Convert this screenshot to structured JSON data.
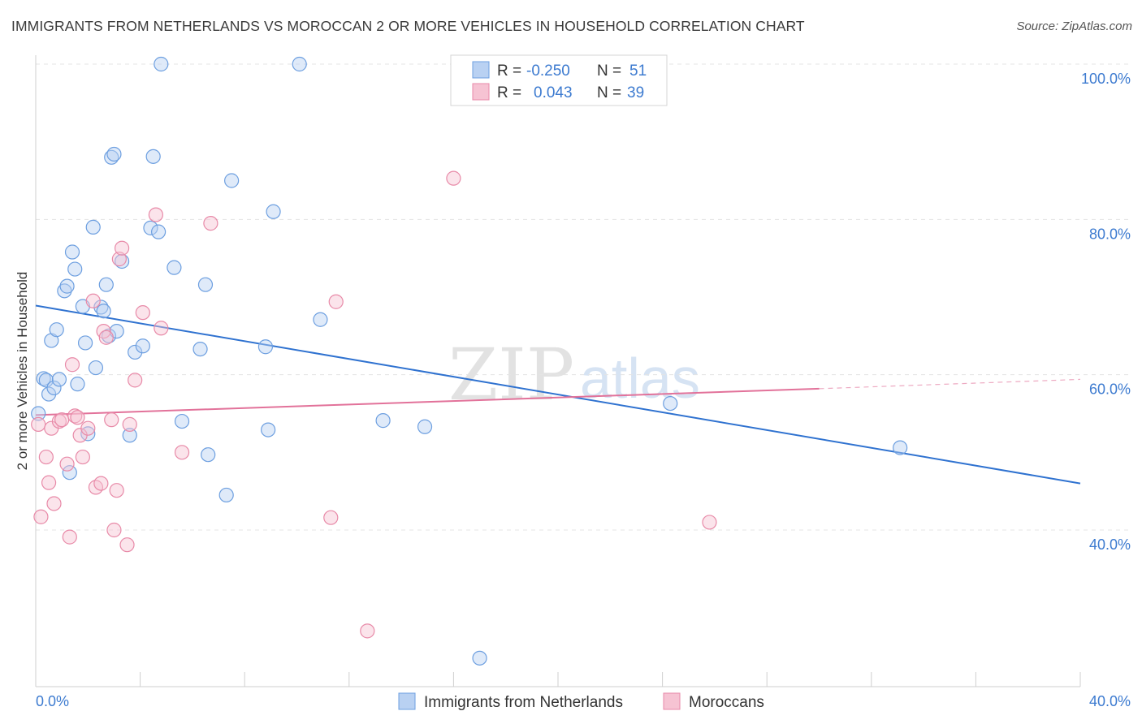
{
  "title": "IMMIGRANTS FROM NETHERLANDS VS MOROCCAN 2 OR MORE VEHICLES IN HOUSEHOLD CORRELATION CHART",
  "source": "Source: ZipAtlas.com",
  "colors": {
    "blue": "#6d9fe0",
    "blue_fill": "#b9d1f2",
    "pink": "#e88aa8",
    "pink_fill": "#f6c3d3",
    "blue_line": "#2f72d0",
    "pink_line": "#e2729a",
    "tick": "#3d7bd0"
  },
  "watermark": {
    "zip": "ZIP",
    "atlas": "atlas"
  },
  "legend": {
    "rows": [
      {
        "r_label": "R =",
        "r_value": "-0.250",
        "n_label": "N =",
        "n_value": "51"
      },
      {
        "r_label": "R =",
        "r_value": "0.043",
        "n_label": "N =",
        "n_value": "39"
      }
    ]
  },
  "chart_data": {
    "type": "scatter",
    "title": "IMMIGRANTS FROM NETHERLANDS VS MOROCCAN 2 OR MORE VEHICLES IN HOUSEHOLD CORRELATION CHART",
    "xlabel": "",
    "ylabel": "2 or more Vehicles in Household",
    "xlim": [
      0,
      40
    ],
    "ylim": [
      20,
      102
    ],
    "x_tick_labels": [
      {
        "value": 0,
        "label": "0.0%"
      },
      {
        "value": 40,
        "label": "40.0%"
      }
    ],
    "y_tick_labels": [
      {
        "value": 100,
        "label": "100.0%"
      },
      {
        "value": 80,
        "label": "80.0%"
      },
      {
        "value": 60,
        "label": "60.0%"
      },
      {
        "value": 40,
        "label": "40.0%"
      }
    ],
    "series": [
      {
        "name": "Immigrants from Netherlands",
        "color": "#6d9fe0",
        "r": -0.25,
        "n": 51,
        "trend": {
          "x0": 0,
          "y0": 68.9,
          "x1": 40,
          "y1": 46.0
        },
        "points": [
          [
            0.1,
            55.0
          ],
          [
            0.3,
            59.5
          ],
          [
            0.4,
            59.3
          ],
          [
            0.5,
            57.5
          ],
          [
            0.6,
            64.4
          ],
          [
            0.7,
            58.3
          ],
          [
            0.8,
            65.8
          ],
          [
            0.9,
            59.4
          ],
          [
            1.1,
            70.8
          ],
          [
            1.2,
            71.4
          ],
          [
            1.3,
            47.4
          ],
          [
            1.4,
            75.8
          ],
          [
            1.5,
            73.6
          ],
          [
            1.6,
            58.8
          ],
          [
            1.8,
            68.8
          ],
          [
            1.9,
            64.1
          ],
          [
            2.0,
            52.4
          ],
          [
            2.2,
            79.0
          ],
          [
            2.3,
            60.9
          ],
          [
            2.5,
            68.7
          ],
          [
            2.6,
            68.2
          ],
          [
            2.7,
            71.6
          ],
          [
            2.8,
            65.0
          ],
          [
            2.9,
            88.0
          ],
          [
            3.0,
            88.4
          ],
          [
            3.1,
            65.6
          ],
          [
            3.3,
            74.6
          ],
          [
            3.6,
            52.2
          ],
          [
            3.8,
            62.9
          ],
          [
            4.1,
            63.7
          ],
          [
            4.4,
            78.9
          ],
          [
            4.5,
            88.1
          ],
          [
            4.7,
            78.4
          ],
          [
            4.8,
            100.0
          ],
          [
            5.3,
            73.8
          ],
          [
            5.6,
            54.0
          ],
          [
            6.3,
            63.3
          ],
          [
            6.5,
            71.6
          ],
          [
            6.6,
            49.7
          ],
          [
            7.3,
            44.5
          ],
          [
            7.5,
            85.0
          ],
          [
            8.8,
            63.6
          ],
          [
            8.9,
            52.9
          ],
          [
            9.1,
            81.0
          ],
          [
            10.1,
            100.0
          ],
          [
            10.9,
            67.1
          ],
          [
            13.3,
            54.1
          ],
          [
            14.9,
            53.3
          ],
          [
            17.0,
            23.5
          ],
          [
            24.3,
            56.3
          ],
          [
            33.1,
            50.6
          ]
        ]
      },
      {
        "name": "Moroccans",
        "color": "#e88aa8",
        "r": 0.043,
        "n": 39,
        "trend": {
          "x0": 0,
          "y0": 54.8,
          "x1": 30,
          "y1": 58.2
        },
        "trend_dashed": {
          "x0": 30,
          "y0": 58.2,
          "x1": 40,
          "y1": 59.4
        },
        "points": [
          [
            0.1,
            53.6
          ],
          [
            0.2,
            41.7
          ],
          [
            0.4,
            49.4
          ],
          [
            0.5,
            46.1
          ],
          [
            0.6,
            53.1
          ],
          [
            0.7,
            43.4
          ],
          [
            0.9,
            54.0
          ],
          [
            1.0,
            54.2
          ],
          [
            1.2,
            48.5
          ],
          [
            1.3,
            39.1
          ],
          [
            1.4,
            61.3
          ],
          [
            1.5,
            54.7
          ],
          [
            1.6,
            54.5
          ],
          [
            1.7,
            52.2
          ],
          [
            1.8,
            49.4
          ],
          [
            2.0,
            53.1
          ],
          [
            2.2,
            69.5
          ],
          [
            2.3,
            45.5
          ],
          [
            2.5,
            46.0
          ],
          [
            2.6,
            65.6
          ],
          [
            2.7,
            64.8
          ],
          [
            2.9,
            54.2
          ],
          [
            3.0,
            40.0
          ],
          [
            3.1,
            45.1
          ],
          [
            3.2,
            74.9
          ],
          [
            3.3,
            76.3
          ],
          [
            3.5,
            38.1
          ],
          [
            3.6,
            53.6
          ],
          [
            3.8,
            59.3
          ],
          [
            4.1,
            68.0
          ],
          [
            4.6,
            80.6
          ],
          [
            4.8,
            66.0
          ],
          [
            5.6,
            50.0
          ],
          [
            6.7,
            79.5
          ],
          [
            11.3,
            41.6
          ],
          [
            11.5,
            69.4
          ],
          [
            12.7,
            27.0
          ],
          [
            16.0,
            85.3
          ],
          [
            25.8,
            41.0
          ]
        ]
      }
    ]
  }
}
